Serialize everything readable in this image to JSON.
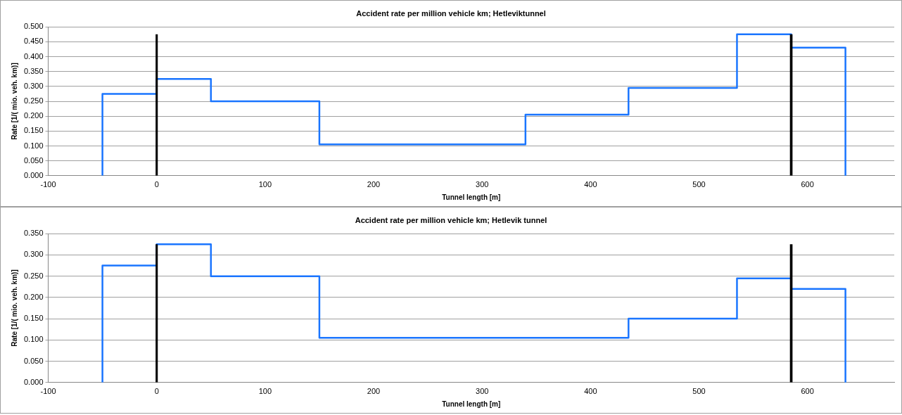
{
  "chart_data": [
    {
      "type": "line",
      "title": "Accident rate per million vehicle km; Hetleviktunnel",
      "xlabel": "Tunnel length [m]",
      "ylabel": "Rate [1/( mio. veh. km)]",
      "xlim": [
        -100,
        680
      ],
      "xticks": [
        -100,
        0,
        100,
        200,
        300,
        400,
        500,
        600
      ],
      "ylim": [
        0,
        0.5
      ],
      "yticks": [
        {
          "value": 0,
          "label": "0.000"
        },
        {
          "value": 0.05,
          "label": "0.050"
        },
        {
          "value": 0.1,
          "label": "0.100"
        },
        {
          "value": 0.15,
          "label": "0.150"
        },
        {
          "value": 0.2,
          "label": "0.200"
        },
        {
          "value": 0.25,
          "label": "0.250"
        },
        {
          "value": 0.3,
          "label": "0.300"
        },
        {
          "value": 0.35,
          "label": "0.350"
        },
        {
          "value": 0.4,
          "label": "0.400"
        },
        {
          "value": 0.45,
          "label": "0.450"
        },
        {
          "value": 0.5,
          "label": "0.500"
        }
      ],
      "grid": "y",
      "legend": false,
      "marker": "none",
      "line_style": "solid",
      "series": [
        {
          "color": "#1a75ff",
          "x": [
            -50,
            -50,
            0,
            0,
            50,
            50,
            150,
            150,
            340,
            340,
            435,
            435,
            535,
            535,
            585,
            585,
            635,
            635
          ],
          "values": [
            0,
            0.275,
            0.275,
            0.325,
            0.325,
            0.25,
            0.25,
            0.105,
            0.105,
            0.205,
            0.205,
            0.295,
            0.295,
            0.475,
            0.475,
            0.43,
            0.43,
            0
          ]
        },
        {
          "color": "#000000",
          "x": [
            0,
            0
          ],
          "values": [
            0,
            0.475
          ]
        },
        {
          "color": "#000000",
          "x": [
            585,
            585
          ],
          "values": [
            0,
            0.475
          ]
        }
      ]
    },
    {
      "type": "line",
      "title": "Accident rate per million vehicle km; Hetlevik tunnel",
      "xlabel": "Tunnel length [m]",
      "ylabel": "Rate [1/( mio. veh. km)]",
      "xlim": [
        -100,
        680
      ],
      "xticks": [
        -100,
        0,
        100,
        200,
        300,
        400,
        500,
        600
      ],
      "ylim": [
        0,
        0.35
      ],
      "yticks": [
        {
          "value": 0,
          "label": "0.000"
        },
        {
          "value": 0.05,
          "label": "0.050"
        },
        {
          "value": 0.1,
          "label": "0.100"
        },
        {
          "value": 0.15,
          "label": "0.150"
        },
        {
          "value": 0.2,
          "label": "0.200"
        },
        {
          "value": 0.25,
          "label": "0.250"
        },
        {
          "value": 0.3,
          "label": "0.300"
        },
        {
          "value": 0.35,
          "label": "0.350"
        }
      ],
      "grid": "y",
      "legend": false,
      "marker": "none",
      "line_style": "solid",
      "series": [
        {
          "color": "#1a75ff",
          "x": [
            -50,
            -50,
            0,
            0,
            50,
            50,
            150,
            150,
            435,
            435,
            535,
            535,
            585,
            585,
            635,
            635
          ],
          "values": [
            0,
            0.275,
            0.275,
            0.325,
            0.325,
            0.25,
            0.25,
            0.105,
            0.105,
            0.15,
            0.15,
            0.245,
            0.245,
            0.22,
            0.22,
            0
          ]
        },
        {
          "color": "#000000",
          "x": [
            0,
            0
          ],
          "values": [
            0,
            0.325
          ]
        },
        {
          "color": "#000000",
          "x": [
            585,
            585
          ],
          "values": [
            0,
            0.325
          ]
        }
      ]
    }
  ]
}
